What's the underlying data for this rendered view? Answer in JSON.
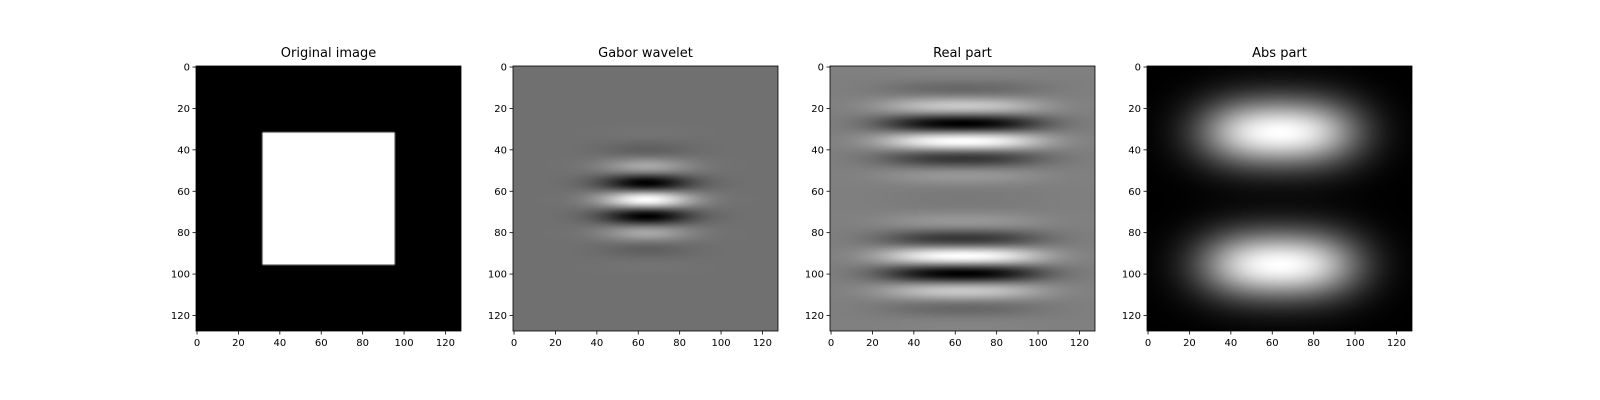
{
  "chart_data": [
    {
      "type": "heatmap",
      "title": "Original image",
      "colormap": "gray",
      "shape": [
        128,
        128
      ],
      "xlim": [
        0,
        128
      ],
      "ylim": [
        128,
        0
      ],
      "xticks": [
        "0",
        "20",
        "40",
        "60",
        "80",
        "100",
        "120"
      ],
      "yticks": [
        "0",
        "20",
        "40",
        "60",
        "80",
        "100",
        "120"
      ],
      "content": "white square on black",
      "square": [
        32,
        96
      ]
    },
    {
      "type": "heatmap",
      "title": "Gabor wavelet",
      "colormap": "gray",
      "shape": [
        128,
        128
      ],
      "xlim": [
        0,
        128
      ],
      "ylim": [
        128,
        0
      ],
      "xticks": [
        "0",
        "20",
        "40",
        "60",
        "80",
        "100",
        "120"
      ],
      "yticks": [
        "0",
        "20",
        "40",
        "60",
        "80",
        "100",
        "120"
      ]
    },
    {
      "type": "heatmap",
      "title": "Real part",
      "colormap": "gray",
      "shape": [
        128,
        128
      ],
      "xlim": [
        0,
        128
      ],
      "ylim": [
        128,
        0
      ],
      "xticks": [
        "0",
        "20",
        "40",
        "60",
        "80",
        "100",
        "120"
      ],
      "yticks": [
        "0",
        "20",
        "40",
        "60",
        "80",
        "100",
        "120"
      ]
    },
    {
      "type": "heatmap",
      "title": "Abs part",
      "colormap": "gray",
      "shape": [
        128,
        128
      ],
      "xlim": [
        0,
        128
      ],
      "ylim": [
        128,
        0
      ],
      "xticks": [
        "0",
        "20",
        "40",
        "60",
        "80",
        "100",
        "120"
      ],
      "yticks": [
        "0",
        "20",
        "40",
        "60",
        "80",
        "100",
        "120"
      ]
    }
  ]
}
